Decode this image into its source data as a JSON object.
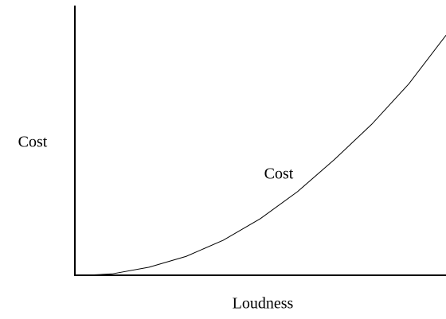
{
  "chart_data": {
    "type": "line",
    "x_label": "Loudness",
    "y_label": "Cost",
    "x": [
      3,
      10,
      20,
      30,
      40,
      50,
      60,
      70,
      80,
      90,
      100
    ],
    "series": [
      {
        "name": "Cost",
        "color": "#000000",
        "values": [
          0,
          0.5,
          3,
          7,
          13,
          21,
          31,
          43,
          56,
          71,
          89
        ]
      }
    ],
    "xlim": [
      0,
      100
    ],
    "ylim": [
      0,
      100
    ],
    "grid": false
  }
}
